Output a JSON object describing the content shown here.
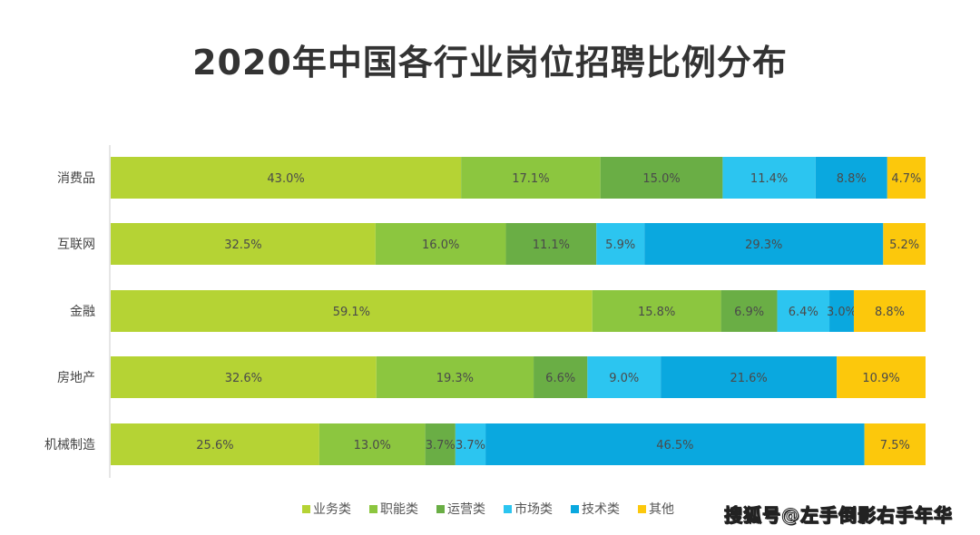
{
  "chart_data": {
    "type": "bar",
    "orientation": "horizontal",
    "stacked": true,
    "title": "2020年中国各行业岗位招聘比例分布",
    "categories": [
      "消费品",
      "互联网",
      "金融",
      "房地产",
      "机械制造"
    ],
    "series": [
      {
        "name": "业务类",
        "color": "#b5d334",
        "values": [
          43.0,
          32.5,
          59.1,
          32.6,
          25.6
        ]
      },
      {
        "name": "职能类",
        "color": "#8cc63f",
        "values": [
          17.1,
          16.0,
          15.8,
          19.3,
          13.0
        ]
      },
      {
        "name": "运营类",
        "color": "#6aae45",
        "values": [
          15.0,
          11.1,
          6.9,
          6.6,
          3.7
        ]
      },
      {
        "name": "市场类",
        "color": "#2cc5f0",
        "values": [
          11.4,
          5.9,
          6.4,
          9.0,
          3.7
        ]
      },
      {
        "name": "技术类",
        "color": "#0aa8df",
        "values": [
          8.8,
          29.3,
          3.0,
          21.6,
          46.5
        ]
      },
      {
        "name": "其他",
        "color": "#fcc80c",
        "values": [
          4.7,
          5.2,
          8.8,
          10.9,
          7.5
        ]
      }
    ],
    "value_format": "percent, 1 decimal",
    "legend_position": "bottom",
    "grid": false
  },
  "watermark": "搜狐号@左手倒影右手年华"
}
